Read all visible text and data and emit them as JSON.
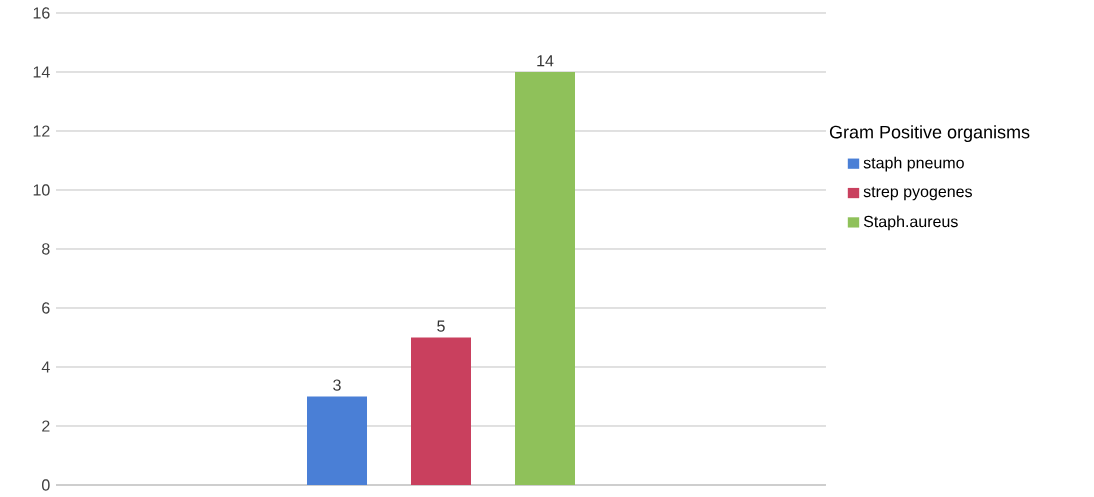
{
  "chart_data": {
    "type": "bar",
    "categories": [
      null
    ],
    "series": [
      {
        "name": "staph pneumo",
        "color": "#4a7fd6",
        "values": [
          3
        ]
      },
      {
        "name": "strep pyogenes",
        "color": "#c9405e",
        "values": [
          5
        ]
      },
      {
        "name": "Staph.aureus",
        "color": "#8fc15a",
        "values": [
          14
        ]
      }
    ],
    "legend_title": "Gram Positive organisms",
    "legend": "right",
    "grid": "y",
    "data_labels": true,
    "ylim": [
      0,
      16
    ],
    "yticks": [
      0,
      2,
      4,
      6,
      8,
      10,
      12,
      14,
      16
    ]
  }
}
